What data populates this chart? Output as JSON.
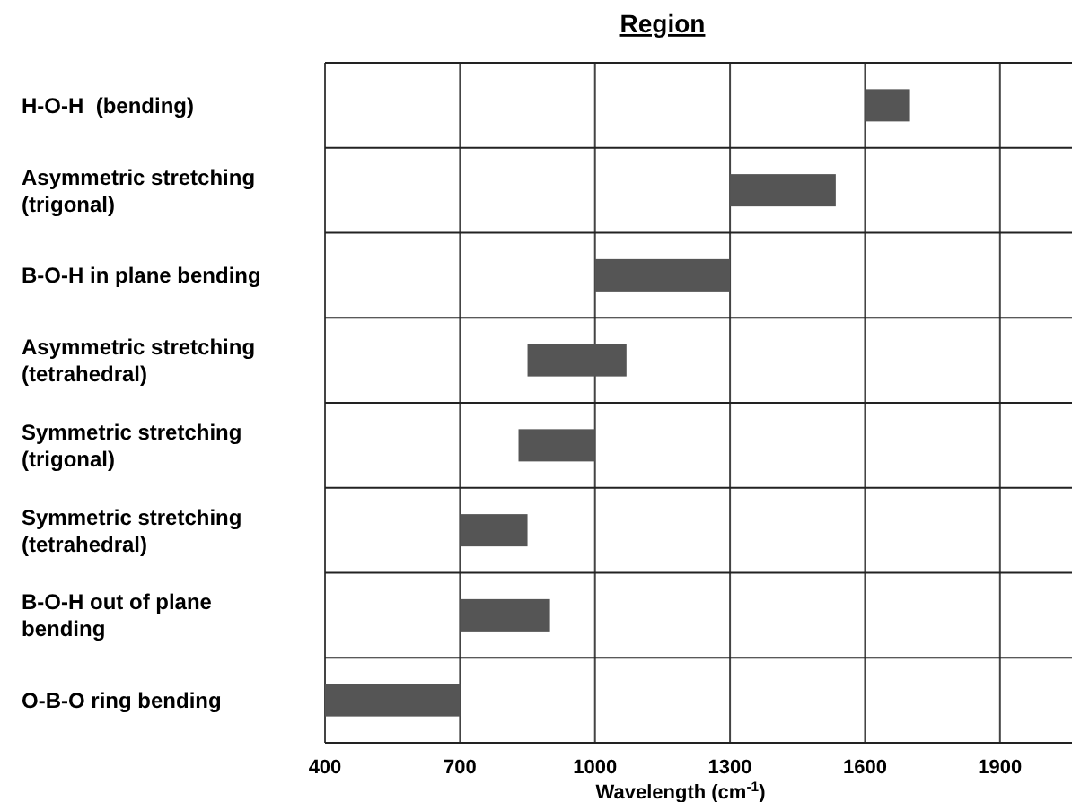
{
  "chart_data": {
    "type": "bar",
    "orientation": "horizontal",
    "title": "Region",
    "xlabel": "Wavelength (cm$^{-1}$)",
    "categories": [
      "H-O-H  (bending)",
      "Asymmetric stretching (trigonal)",
      "B-O-H in plane bending",
      "Asymmetric stretching (tetrahedral)",
      "Symmetric stretching (trigonal)",
      "Symmetric stretching (tetrahedral)",
      "B-O-H out of plane bending",
      "O-B-O ring bending"
    ],
    "base": [
      1600,
      1300,
      1000,
      850,
      830,
      700,
      700,
      400
    ],
    "values": [
      100,
      235,
      300,
      220,
      170,
      150,
      200,
      300
    ],
    "color": "#555555",
    "xlim": [
      400,
      2060
    ],
    "xticks": [
      400,
      700,
      1000,
      1300,
      1600,
      1900
    ],
    "grid": true
  }
}
